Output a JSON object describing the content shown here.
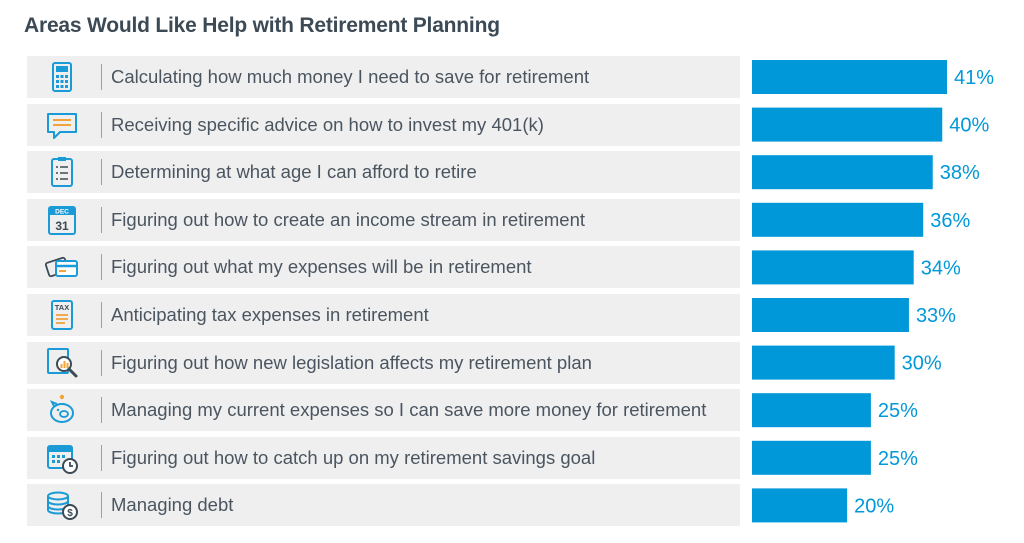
{
  "chart_data": {
    "type": "bar",
    "orientation": "horizontal",
    "title": "Areas Would Like Help with Retirement Planning",
    "categories": [
      "Calculating how much money I need to save for retirement",
      "Receiving specific advice on how to invest my 401(k)",
      "Determining at what age I can afford to retire",
      "Figuring out how to create an income stream in retirement",
      "Figuring out what my expenses will be in retirement",
      "Anticipating tax expenses in retirement",
      "Figuring out how new legislation affects my retirement plan",
      "Managing my current expenses so I can save more money for retirement",
      "Figuring out how to catch up on my retirement savings goal",
      "Managing debt"
    ],
    "values": [
      41,
      40,
      38,
      36,
      34,
      33,
      30,
      25,
      25,
      20
    ],
    "value_labels": [
      "41%",
      "40%",
      "38%",
      "36%",
      "34%",
      "33%",
      "30%",
      "25%",
      "25%",
      "20%"
    ],
    "icons": [
      "calculator-icon",
      "chat-bubble-icon",
      "checklist-icon",
      "calendar-dec-31-icon",
      "credit-card-icon",
      "tax-form-icon",
      "magnifier-report-icon",
      "piggy-bank-icon",
      "calendar-clock-icon",
      "coin-stack-icon"
    ],
    "icon_texts": {
      "calendar": "DEC",
      "calendar_day": "31",
      "tax": "TAX",
      "coin": "$"
    },
    "bar_color": "#0098d8",
    "label_color": "#0098d8",
    "xlim": [
      0,
      41
    ],
    "grid": false,
    "legend": "none"
  }
}
